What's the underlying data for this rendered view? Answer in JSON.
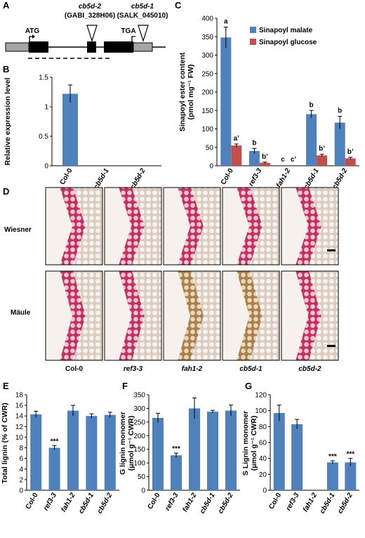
{
  "panels": {
    "A": {
      "letter": "A",
      "atg": "ATG",
      "tga": "TGA",
      "allele2_name": "cb5d-2",
      "allele2_line": "(GABI_328H06)",
      "allele1_name": "cb5d-1",
      "allele1_line": "(SALK_045010)"
    },
    "D": {
      "letter": "D",
      "row_labels": [
        "Wiesner",
        "Mäule"
      ],
      "col_labels": [
        "Col-0",
        "ref3-3",
        "fah1-2",
        "cb5d-1",
        "cb5d-2"
      ],
      "colors": {
        "wiesner_stain": "#c0285a",
        "maule_red": "#c8204a",
        "maule_brown": "#b08a4e",
        "background": "#f2ece6"
      }
    }
  },
  "colors": {
    "blue": "#4f81bd",
    "red": "#c0504d"
  },
  "chart_data": [
    {
      "id": "B",
      "letter": "B",
      "type": "bar",
      "ylabel": "Relative expression level",
      "categories": [
        "Col-0",
        "cb5d-1",
        "cb5d-2"
      ],
      "series": [
        {
          "values": [
            1.22,
            0,
            0
          ],
          "errors": [
            0.15,
            0,
            0
          ]
        }
      ],
      "ylim": [
        0,
        1.5
      ],
      "yticks": [
        "0",
        "0.5",
        "1",
        "1.5"
      ]
    },
    {
      "id": "C",
      "letter": "C",
      "type": "bar",
      "ylabel_lines": [
        "Sinapoyl ester content",
        "(pmol mg⁻¹ FW)"
      ],
      "categories": [
        "Col-0",
        "ref3-3",
        "fah1-2",
        "cb5d-1",
        "cb5d-2"
      ],
      "series": [
        {
          "name": "Sinapoyl malate",
          "values": [
            348,
            40,
            0,
            140,
            117
          ],
          "errors": [
            28,
            7,
            0,
            10,
            17
          ],
          "letters": [
            "a",
            "b",
            "c",
            "b",
            "b"
          ]
        },
        {
          "name": "Sinapoyl glucose",
          "values": [
            55,
            8,
            0,
            28,
            20
          ],
          "errors": [
            4,
            2,
            0,
            3,
            3
          ],
          "letters": [
            "a’",
            "b’",
            "c’",
            "b’",
            "b’"
          ]
        }
      ],
      "ylim": [
        0,
        400
      ],
      "yticks": [
        "0",
        "50",
        "100",
        "150",
        "200",
        "250",
        "300",
        "350",
        "400"
      ],
      "legend": "top-right"
    },
    {
      "id": "E",
      "letter": "E",
      "type": "bar",
      "ylabel": "Total lignin (% of CWR)",
      "categories": [
        "Col-0",
        "ref3-3",
        "fah1-2",
        "cb5d-1",
        "cb5d-2"
      ],
      "series": [
        {
          "values": [
            14.3,
            8.0,
            15.0,
            14.0,
            14.2
          ],
          "errors": [
            0.6,
            0.4,
            1.0,
            0.4,
            0.5
          ],
          "marks": [
            "",
            "***",
            "",
            "",
            ""
          ]
        }
      ],
      "ylim": [
        0,
        18
      ],
      "yticks": [
        "0",
        "2",
        "4",
        "6",
        "8",
        "10",
        "12",
        "14",
        "16",
        "18"
      ]
    },
    {
      "id": "F",
      "letter": "F",
      "type": "bar",
      "ylabel_lines": [
        "G lignin monomer",
        "(μmol g⁻¹ CWR)"
      ],
      "categories": [
        "Col-0",
        "ref3-3",
        "fah1-2",
        "cb5d-1",
        "cb5d-2"
      ],
      "series": [
        {
          "values": [
            265,
            128,
            300,
            288,
            292
          ],
          "errors": [
            17,
            8,
            38,
            5,
            20
          ],
          "marks": [
            "",
            "***",
            "",
            "",
            ""
          ]
        }
      ],
      "ylim": [
        0,
        350
      ],
      "yticks": [
        "0",
        "50",
        "100",
        "150",
        "200",
        "250",
        "300",
        "350"
      ]
    },
    {
      "id": "G",
      "letter": "G",
      "type": "bar",
      "ylabel_lines": [
        "S Lignin monomer",
        "(μmol g⁻¹ CWR)"
      ],
      "categories": [
        "Col-0",
        "ref3-3",
        "fah1-2",
        "cb5d-1",
        "cb5d-2"
      ],
      "series": [
        {
          "values": [
            97,
            83,
            0,
            35,
            35
          ],
          "errors": [
            10,
            6,
            0,
            2,
            5
          ],
          "marks": [
            "",
            "",
            "",
            "***",
            "***"
          ]
        }
      ],
      "ylim": [
        0,
        120
      ],
      "yticks": [
        "0",
        "20",
        "40",
        "60",
        "80",
        "100",
        "120"
      ]
    }
  ]
}
